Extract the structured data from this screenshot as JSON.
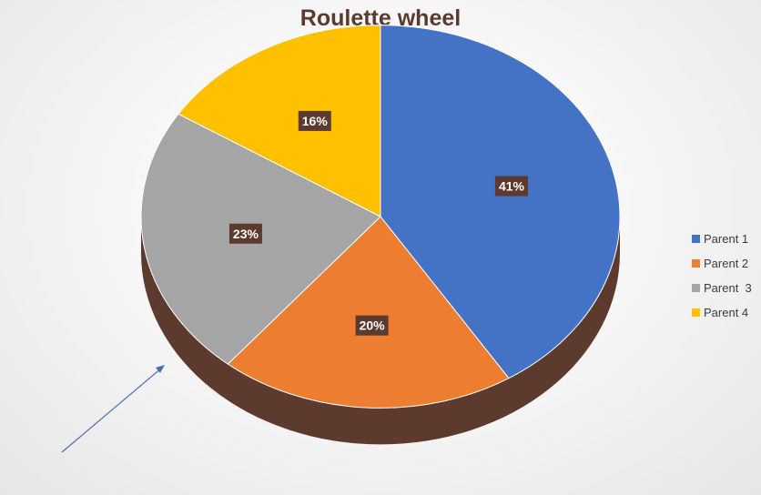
{
  "chart_data": {
    "type": "pie",
    "title": "Roulette wheel",
    "categories": [
      "Parent 1",
      "Parent 2",
      "Parent  3",
      "Parent 4"
    ],
    "values": [
      41,
      20,
      23,
      16
    ],
    "data_labels": [
      "41%",
      "20%",
      "23%",
      "16%"
    ],
    "colors": [
      "#4472C4",
      "#ED7D31",
      "#A5A5A5",
      "#FFC000"
    ],
    "legend_position": "right",
    "style": "3d-pie",
    "side_color": "#5C3A2E",
    "label_background": "#5C3A2E",
    "annotation": "arrow"
  }
}
